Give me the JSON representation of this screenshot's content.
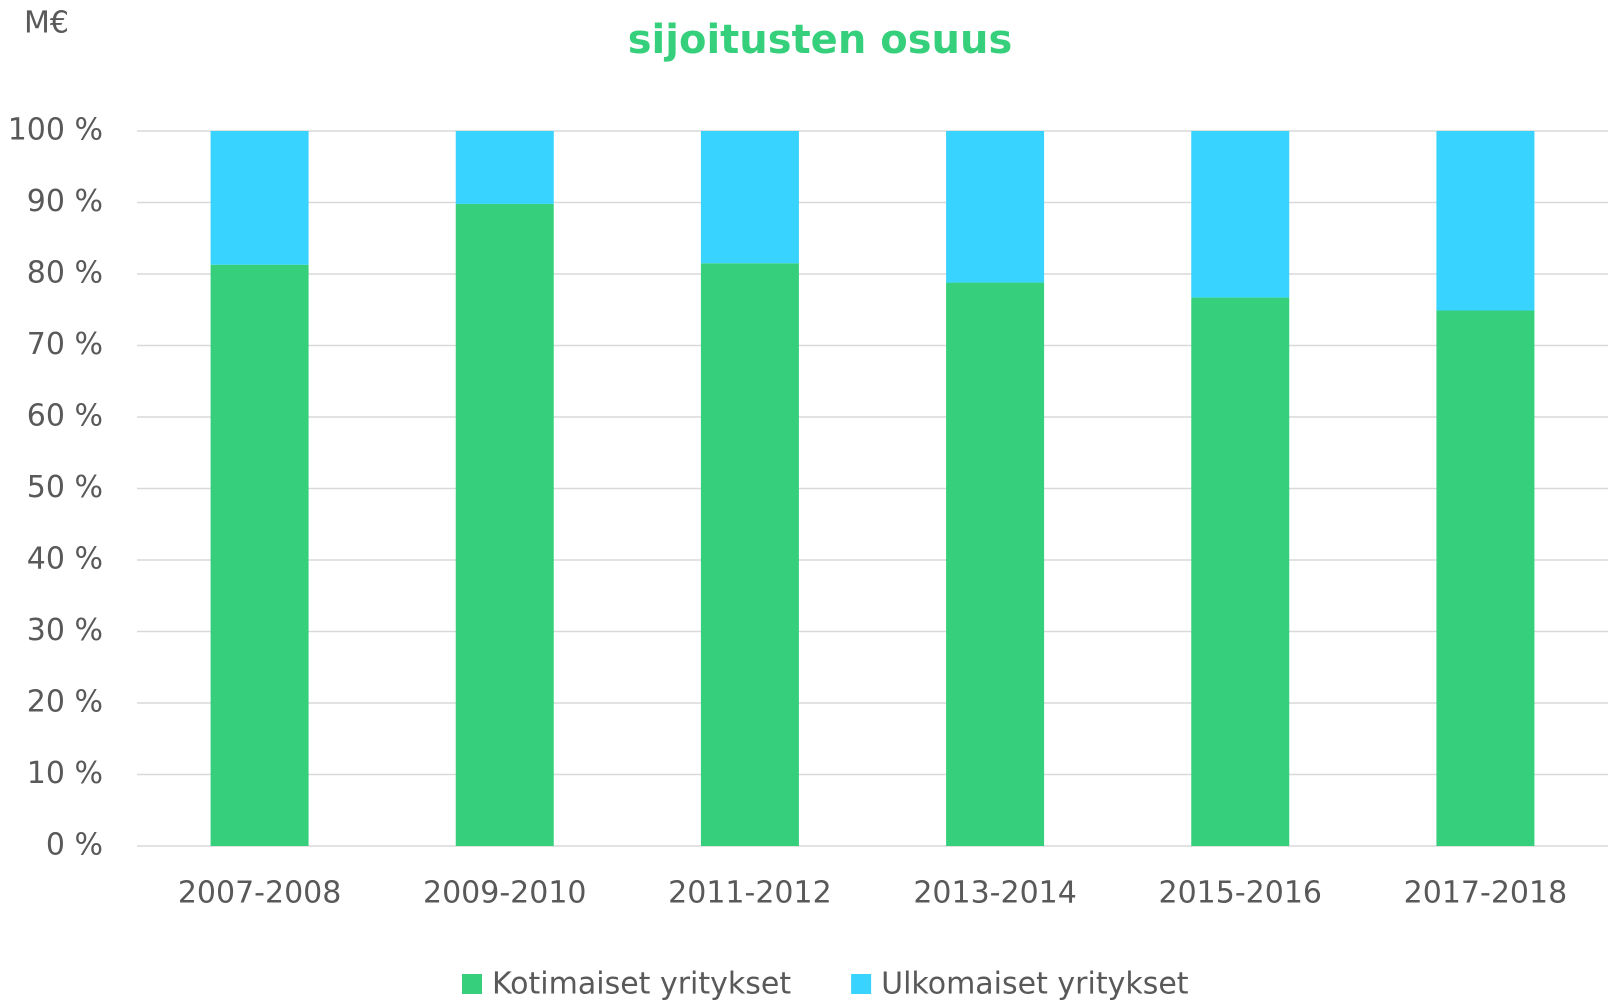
{
  "chart_data": {
    "type": "stacked_bar",
    "title": "sijoitusten osuus",
    "y_label": "M€",
    "categories": [
      "2007-2008",
      "2009-2010",
      "2011-2012",
      "2013-2014",
      "2015-2016",
      "2017-2018"
    ],
    "series": [
      {
        "name": "Kotimaiset yritykset",
        "color": "#36d07c",
        "values": [
          81.3,
          89.8,
          81.5,
          78.8,
          76.7,
          74.9
        ]
      },
      {
        "name": "Ulkomaiset yritykset",
        "color": "#38d3fe",
        "values": [
          18.7,
          10.2,
          18.5,
          21.2,
          23.3,
          25.1
        ]
      }
    ],
    "ylim": [
      0,
      100
    ],
    "yticks": [
      {
        "value": 0,
        "label": "0 %"
      },
      {
        "value": 10,
        "label": "10 %"
      },
      {
        "value": 20,
        "label": "20 %"
      },
      {
        "value": 30,
        "label": "30 %"
      },
      {
        "value": 40,
        "label": "40 %"
      },
      {
        "value": 50,
        "label": "50 %"
      },
      {
        "value": 60,
        "label": "60 %"
      },
      {
        "value": 70,
        "label": "70 %"
      },
      {
        "value": 80,
        "label": "80 %"
      },
      {
        "value": 90,
        "label": "90 %"
      },
      {
        "value": 100,
        "label": "100 %"
      }
    ],
    "grid": true,
    "legend": "bottom"
  }
}
